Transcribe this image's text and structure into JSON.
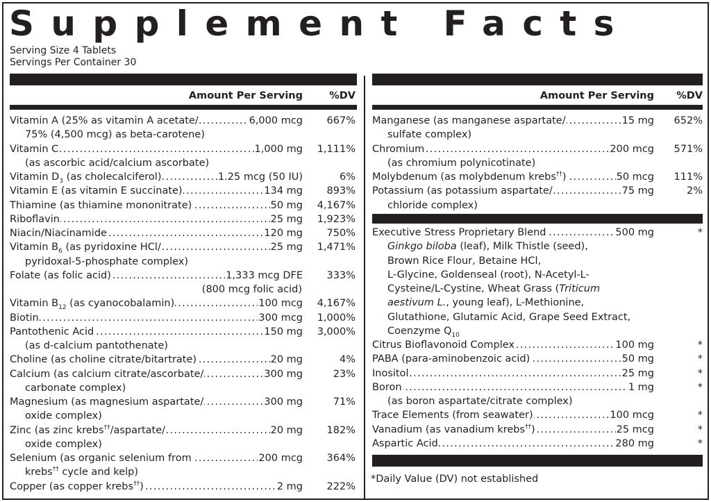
{
  "title": "Supplement Facts",
  "serving_size": "Serving Size 4 Tablets",
  "servings_per_container": "Servings Per Container 30",
  "headers": {
    "amount": "Amount Per Serving",
    "dv": "%DV"
  },
  "left_items": [
    {
      "name": "Vitamin A (25% as vitamin A acetate/",
      "amount": "6,000 mcg",
      "dv": "667%",
      "sub": "75% (4,500 mcg) as beta-carotene)"
    },
    {
      "name": "Vitamin C",
      "amount": "1,000 mg",
      "dv": "1,111%",
      "sub": "(as ascorbic acid/calcium ascorbate)"
    },
    {
      "name": "Vitamin D₃ (as cholecalciferol)",
      "amount": "1.25 mcg (50 IU)",
      "dv": "6%"
    },
    {
      "name": "Vitamin E (as vitamin E succinate)",
      "amount": "134 mg",
      "dv": "893%"
    },
    {
      "name": "Thiamine (as thiamine mononitrate)",
      "amount": "50 mg",
      "dv": "4,167%"
    },
    {
      "name": "Riboflavin",
      "amount": "25 mg",
      "dv": "1,923%"
    },
    {
      "name": "Niacin/Niacinamide",
      "amount": "120 mg",
      "dv": "750%"
    },
    {
      "name": "Vitamin B₆ (as pyridoxine HCl/",
      "amount": "25 mg",
      "dv": "1,471%",
      "sub": "pyridoxal-5-phosphate complex)"
    },
    {
      "name": "Folate (as folic acid)",
      "amount": "1,333 mcg DFE",
      "dv": "333%",
      "sub_right": "(800 mcg folic acid)"
    },
    {
      "name": "Vitamin B₁₂ (as cyanocobalamin)",
      "amount": "100 mcg",
      "dv": "4,167%"
    },
    {
      "name": "Biotin",
      "amount": "300 mcg",
      "dv": "1,000%"
    },
    {
      "name": "Pantothenic Acid",
      "amount": "150 mg",
      "dv": "3,000%",
      "sub": "(as d-calcium pantothenate)"
    },
    {
      "name": "Choline (as choline citrate/bitartrate)",
      "amount": "20 mg",
      "dv": "4%"
    },
    {
      "name": "Calcium (as calcium citrate/ascorbate/",
      "amount": "300 mg",
      "dv": "23%",
      "sub": "carbonate complex)"
    },
    {
      "name": "Magnesium (as magnesium aspartate/",
      "amount": "300 mg",
      "dv": "71%",
      "sub": "oxide complex)"
    },
    {
      "name": "Zinc (as zinc krebs††/aspartate/",
      "amount": "20 mg",
      "dv": "182%",
      "sub": "oxide complex)"
    },
    {
      "name": "Selenium (as organic selenium from",
      "amount": "200 mcg",
      "dv": "364%",
      "sub": "krebs†† cycle and kelp)"
    },
    {
      "name": "Copper (as copper krebs††)",
      "amount": "2 mg",
      "dv": "222%"
    }
  ],
  "right_items_a": [
    {
      "name": "Manganese (as manganese aspartate/",
      "amount": "15 mg",
      "dv": "652%",
      "sub": "sulfate complex)"
    },
    {
      "name": "Chromium",
      "amount": "200 mcg",
      "dv": "571%",
      "sub": "(as chromium polynicotinate)"
    },
    {
      "name": "Molybdenum (as molybdenum krebs††)",
      "amount": "50 mcg",
      "dv": "111%"
    },
    {
      "name": "Potassium (as potassium aspartate/",
      "amount": "75 mg",
      "dv": "2%",
      "sub": "chloride complex)"
    }
  ],
  "blend": {
    "name": "Executive Stress Proprietary Blend",
    "amount": "500 mg",
    "dv": "*",
    "lines": [
      "Ginkgo biloba (leaf), Milk Thistle (seed),",
      "Brown Rice Flour, Betaine HCl,",
      "L-Glycine, Goldenseal (root), N-Acetyl-L-",
      "Cysteine/L-Cystine, Wheat Grass (Triticum",
      "aestivum L., young leaf),  L-Methionine,",
      "Glutathione, Glutamic Acid, Grape Seed Extract,",
      "Coenzyme Q₁₀"
    ]
  },
  "right_items_b": [
    {
      "name": "Citrus Bioflavonoid Complex",
      "amount": "100 mg",
      "dv": "*"
    },
    {
      "name": "PABA (para-aminobenzoic acid)",
      "amount": "50 mg",
      "dv": "*"
    },
    {
      "name": "Inositol",
      "amount": "25 mg",
      "dv": "*"
    },
    {
      "name": "Boron",
      "amount": "1 mg",
      "dv": "*",
      "sub": "(as boron aspartate/citrate complex)"
    },
    {
      "name": "Trace Elements (from seawater)",
      "amount": "100 mcg",
      "dv": "*"
    },
    {
      "name": "Vanadium (as vanadium krebs††)",
      "amount": "25 mcg",
      "dv": "*"
    },
    {
      "name": "Aspartic Acid",
      "amount": "280 mg",
      "dv": "*"
    }
  ],
  "footnote": "*Daily Value (DV) not established"
}
